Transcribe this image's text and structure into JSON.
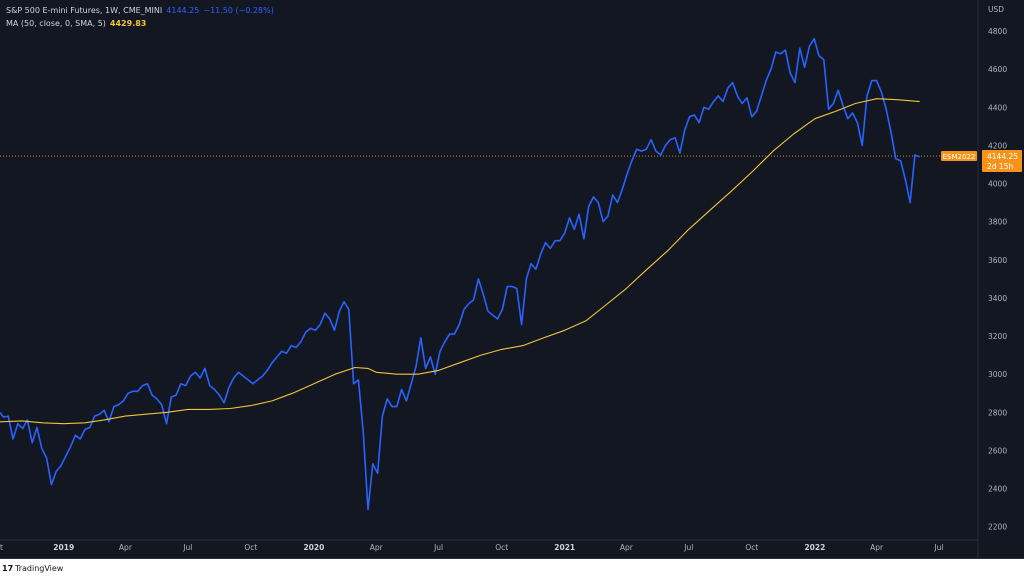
{
  "legend": {
    "symbol": "S&P 500 E-mini Futures, 1W, CME_MINI",
    "price": "4144.25",
    "change": "−11.50 (−0.28%)",
    "ma_label": "MA (50, close, 0, SMA, 5)",
    "ma_value": "4429.83"
  },
  "footer": {
    "brand": "TradingView",
    "logo_text": "17"
  },
  "chart_data": {
    "type": "line",
    "currency": "USD",
    "y_ticks": [
      2200,
      2400,
      2600,
      2800,
      3000,
      3200,
      3400,
      3600,
      3800,
      4000,
      4200,
      4400,
      4600,
      4800
    ],
    "ylim": [
      2130,
      4900
    ],
    "x_ticks": [
      {
        "label": "2019",
        "x": "2019-01-01"
      },
      {
        "label": "Apr",
        "x": "2019-04-01"
      },
      {
        "label": "Jul",
        "x": "2019-07-01"
      },
      {
        "label": "Oct",
        "x": "2019-10-01"
      },
      {
        "label": "2020",
        "x": "2020-01-01"
      },
      {
        "label": "Apr",
        "x": "2020-04-01"
      },
      {
        "label": "Jul",
        "x": "2020-07-01"
      },
      {
        "label": "Oct",
        "x": "2020-10-01"
      },
      {
        "label": "2021",
        "x": "2021-01-01"
      },
      {
        "label": "Apr",
        "x": "2021-04-01"
      },
      {
        "label": "Jul",
        "x": "2021-07-01"
      },
      {
        "label": "Oct",
        "x": "2021-10-01"
      },
      {
        "label": "2022",
        "x": "2022-01-01"
      },
      {
        "label": "Apr",
        "x": "2022-04-01"
      },
      {
        "label": "Jul",
        "x": "2022-07-01"
      }
    ],
    "first_x_label": "t",
    "xlim": [
      "2018-09-30",
      "2022-08-27"
    ],
    "current_price": 4144.25,
    "current_price_label": "4144.25",
    "countdown_label": "2d 15h",
    "contract_label": "ESM2022",
    "series": [
      {
        "color": "#2962ff",
        "points": [
          [
            "2018-09-30",
            2800
          ],
          [
            "2018-10-05",
            2775
          ],
          [
            "2018-10-12",
            2780
          ],
          [
            "2018-10-19",
            2660
          ],
          [
            "2018-10-26",
            2740
          ],
          [
            "2018-11-02",
            2715
          ],
          [
            "2018-11-09",
            2760
          ],
          [
            "2018-11-16",
            2640
          ],
          [
            "2018-11-23",
            2720
          ],
          [
            "2018-11-30",
            2610
          ],
          [
            "2018-12-07",
            2560
          ],
          [
            "2018-12-14",
            2420
          ],
          [
            "2018-12-21",
            2490
          ],
          [
            "2018-12-28",
            2520
          ],
          [
            "2019-01-04",
            2570
          ],
          [
            "2019-01-11",
            2620
          ],
          [
            "2019-01-18",
            2680
          ],
          [
            "2019-01-25",
            2660
          ],
          [
            "2019-02-01",
            2710
          ],
          [
            "2019-02-08",
            2720
          ],
          [
            "2019-02-15",
            2780
          ],
          [
            "2019-02-22",
            2790
          ],
          [
            "2019-03-01",
            2810
          ],
          [
            "2019-03-08",
            2750
          ],
          [
            "2019-03-15",
            2830
          ],
          [
            "2019-03-22",
            2840
          ],
          [
            "2019-03-29",
            2860
          ],
          [
            "2019-04-05",
            2900
          ],
          [
            "2019-04-12",
            2910
          ],
          [
            "2019-04-19",
            2910
          ],
          [
            "2019-04-26",
            2940
          ],
          [
            "2019-05-03",
            2950
          ],
          [
            "2019-05-10",
            2890
          ],
          [
            "2019-05-17",
            2870
          ],
          [
            "2019-05-24",
            2840
          ],
          [
            "2019-05-31",
            2740
          ],
          [
            "2019-06-07",
            2880
          ],
          [
            "2019-06-14",
            2890
          ],
          [
            "2019-06-21",
            2950
          ],
          [
            "2019-06-28",
            2940
          ],
          [
            "2019-07-05",
            2990
          ],
          [
            "2019-07-12",
            3010
          ],
          [
            "2019-07-19",
            2980
          ],
          [
            "2019-07-26",
            3030
          ],
          [
            "2019-08-02",
            2940
          ],
          [
            "2019-08-09",
            2920
          ],
          [
            "2019-08-16",
            2890
          ],
          [
            "2019-08-23",
            2850
          ],
          [
            "2019-08-30",
            2930
          ],
          [
            "2019-09-06",
            2980
          ],
          [
            "2019-09-13",
            3010
          ],
          [
            "2019-09-20",
            2990
          ],
          [
            "2019-09-27",
            2970
          ],
          [
            "2019-10-04",
            2950
          ],
          [
            "2019-10-11",
            2970
          ],
          [
            "2019-10-18",
            2990
          ],
          [
            "2019-10-25",
            3020
          ],
          [
            "2019-11-01",
            3060
          ],
          [
            "2019-11-08",
            3090
          ],
          [
            "2019-11-15",
            3120
          ],
          [
            "2019-11-22",
            3110
          ],
          [
            "2019-11-29",
            3150
          ],
          [
            "2019-12-06",
            3140
          ],
          [
            "2019-12-13",
            3170
          ],
          [
            "2019-12-20",
            3220
          ],
          [
            "2019-12-27",
            3240
          ],
          [
            "2020-01-03",
            3230
          ],
          [
            "2020-01-10",
            3260
          ],
          [
            "2020-01-17",
            3320
          ],
          [
            "2020-01-24",
            3290
          ],
          [
            "2020-01-31",
            3230
          ],
          [
            "2020-02-07",
            3330
          ],
          [
            "2020-02-14",
            3380
          ],
          [
            "2020-02-21",
            3340
          ],
          [
            "2020-02-28",
            2950
          ],
          [
            "2020-03-06",
            2970
          ],
          [
            "2020-03-13",
            2700
          ],
          [
            "2020-03-20",
            2290
          ],
          [
            "2020-03-27",
            2530
          ],
          [
            "2020-04-03",
            2480
          ],
          [
            "2020-04-10",
            2780
          ],
          [
            "2020-04-17",
            2870
          ],
          [
            "2020-04-24",
            2830
          ],
          [
            "2020-05-01",
            2830
          ],
          [
            "2020-05-08",
            2920
          ],
          [
            "2020-05-15",
            2860
          ],
          [
            "2020-05-22",
            2950
          ],
          [
            "2020-05-29",
            3040
          ],
          [
            "2020-06-05",
            3190
          ],
          [
            "2020-06-12",
            3030
          ],
          [
            "2020-06-19",
            3090
          ],
          [
            "2020-06-26",
            3000
          ],
          [
            "2020-07-03",
            3120
          ],
          [
            "2020-07-10",
            3170
          ],
          [
            "2020-07-17",
            3210
          ],
          [
            "2020-07-24",
            3210
          ],
          [
            "2020-07-31",
            3260
          ],
          [
            "2020-08-07",
            3340
          ],
          [
            "2020-08-14",
            3370
          ],
          [
            "2020-08-21",
            3390
          ],
          [
            "2020-08-28",
            3500
          ],
          [
            "2020-09-04",
            3420
          ],
          [
            "2020-09-11",
            3330
          ],
          [
            "2020-09-18",
            3310
          ],
          [
            "2020-09-25",
            3290
          ],
          [
            "2020-10-02",
            3340
          ],
          [
            "2020-10-09",
            3460
          ],
          [
            "2020-10-16",
            3460
          ],
          [
            "2020-10-23",
            3450
          ],
          [
            "2020-10-30",
            3260
          ],
          [
            "2020-11-06",
            3500
          ],
          [
            "2020-11-13",
            3580
          ],
          [
            "2020-11-20",
            3550
          ],
          [
            "2020-11-27",
            3630
          ],
          [
            "2020-12-04",
            3690
          ],
          [
            "2020-12-11",
            3660
          ],
          [
            "2020-12-18",
            3700
          ],
          [
            "2020-12-25",
            3700
          ],
          [
            "2021-01-01",
            3740
          ],
          [
            "2021-01-08",
            3820
          ],
          [
            "2021-01-15",
            3760
          ],
          [
            "2021-01-22",
            3840
          ],
          [
            "2021-01-29",
            3710
          ],
          [
            "2021-02-05",
            3880
          ],
          [
            "2021-02-12",
            3930
          ],
          [
            "2021-02-19",
            3900
          ],
          [
            "2021-02-26",
            3800
          ],
          [
            "2021-03-05",
            3830
          ],
          [
            "2021-03-12",
            3940
          ],
          [
            "2021-03-19",
            3900
          ],
          [
            "2021-03-26",
            3970
          ],
          [
            "2021-04-02",
            4050
          ],
          [
            "2021-04-09",
            4120
          ],
          [
            "2021-04-16",
            4180
          ],
          [
            "2021-04-23",
            4170
          ],
          [
            "2021-04-30",
            4180
          ],
          [
            "2021-05-07",
            4230
          ],
          [
            "2021-05-14",
            4170
          ],
          [
            "2021-05-21",
            4150
          ],
          [
            "2021-05-28",
            4200
          ],
          [
            "2021-06-04",
            4230
          ],
          [
            "2021-06-11",
            4240
          ],
          [
            "2021-06-18",
            4160
          ],
          [
            "2021-06-25",
            4280
          ],
          [
            "2021-07-02",
            4350
          ],
          [
            "2021-07-09",
            4360
          ],
          [
            "2021-07-16",
            4320
          ],
          [
            "2021-07-23",
            4400
          ],
          [
            "2021-07-30",
            4390
          ],
          [
            "2021-08-06",
            4430
          ],
          [
            "2021-08-13",
            4460
          ],
          [
            "2021-08-20",
            4430
          ],
          [
            "2021-08-27",
            4500
          ],
          [
            "2021-09-03",
            4530
          ],
          [
            "2021-09-10",
            4460
          ],
          [
            "2021-09-17",
            4420
          ],
          [
            "2021-09-24",
            4450
          ],
          [
            "2021-10-01",
            4350
          ],
          [
            "2021-10-08",
            4380
          ],
          [
            "2021-10-15",
            4460
          ],
          [
            "2021-10-22",
            4540
          ],
          [
            "2021-10-29",
            4600
          ],
          [
            "2021-11-05",
            4690
          ],
          [
            "2021-11-12",
            4680
          ],
          [
            "2021-11-19",
            4700
          ],
          [
            "2021-11-26",
            4580
          ],
          [
            "2021-12-03",
            4530
          ],
          [
            "2021-12-10",
            4710
          ],
          [
            "2021-12-17",
            4610
          ],
          [
            "2021-12-24",
            4720
          ],
          [
            "2021-12-31",
            4760
          ],
          [
            "2022-01-07",
            4670
          ],
          [
            "2022-01-14",
            4650
          ],
          [
            "2022-01-21",
            4390
          ],
          [
            "2022-01-28",
            4420
          ],
          [
            "2022-02-04",
            4490
          ],
          [
            "2022-02-11",
            4410
          ],
          [
            "2022-02-18",
            4340
          ],
          [
            "2022-02-25",
            4370
          ],
          [
            "2022-03-04",
            4320
          ],
          [
            "2022-03-11",
            4200
          ],
          [
            "2022-03-18",
            4460
          ],
          [
            "2022-03-25",
            4540
          ],
          [
            "2022-04-01",
            4540
          ],
          [
            "2022-04-08",
            4480
          ],
          [
            "2022-04-15",
            4390
          ],
          [
            "2022-04-22",
            4270
          ],
          [
            "2022-04-29",
            4130
          ],
          [
            "2022-05-06",
            4120
          ],
          [
            "2022-05-13",
            4020
          ],
          [
            "2022-05-20",
            3900
          ],
          [
            "2022-05-27",
            4150
          ],
          [
            "2022-06-03",
            4140
          ]
        ]
      },
      {
        "name": "MA (50, close, 0, SMA, 5)",
        "color": "#f0c43c",
        "points": [
          [
            "2018-09-30",
            2750
          ],
          [
            "2018-11-01",
            2755
          ],
          [
            "2018-12-01",
            2745
          ],
          [
            "2019-01-01",
            2740
          ],
          [
            "2019-02-01",
            2745
          ],
          [
            "2019-03-01",
            2760
          ],
          [
            "2019-04-01",
            2780
          ],
          [
            "2019-05-01",
            2790
          ],
          [
            "2019-06-01",
            2800
          ],
          [
            "2019-07-01",
            2815
          ],
          [
            "2019-08-01",
            2815
          ],
          [
            "2019-09-01",
            2820
          ],
          [
            "2019-10-01",
            2835
          ],
          [
            "2019-11-01",
            2860
          ],
          [
            "2019-12-01",
            2900
          ],
          [
            "2020-01-01",
            2950
          ],
          [
            "2020-02-01",
            3000
          ],
          [
            "2020-03-01",
            3035
          ],
          [
            "2020-03-20",
            3030
          ],
          [
            "2020-04-01",
            3010
          ],
          [
            "2020-05-01",
            3000
          ],
          [
            "2020-06-01",
            3000
          ],
          [
            "2020-07-01",
            3020
          ],
          [
            "2020-08-01",
            3060
          ],
          [
            "2020-09-01",
            3100
          ],
          [
            "2020-10-01",
            3130
          ],
          [
            "2020-11-01",
            3150
          ],
          [
            "2020-12-01",
            3190
          ],
          [
            "2021-01-01",
            3230
          ],
          [
            "2021-02-01",
            3280
          ],
          [
            "2021-03-01",
            3360
          ],
          [
            "2021-04-01",
            3450
          ],
          [
            "2021-05-01",
            3550
          ],
          [
            "2021-06-01",
            3650
          ],
          [
            "2021-07-01",
            3760
          ],
          [
            "2021-08-01",
            3860
          ],
          [
            "2021-09-01",
            3960
          ],
          [
            "2021-10-01",
            4060
          ],
          [
            "2021-11-01",
            4170
          ],
          [
            "2021-12-01",
            4260
          ],
          [
            "2022-01-01",
            4340
          ],
          [
            "2022-02-01",
            4380
          ],
          [
            "2022-03-01",
            4420
          ],
          [
            "2022-04-01",
            4445
          ],
          [
            "2022-05-01",
            4440
          ],
          [
            "2022-06-03",
            4430
          ]
        ]
      }
    ]
  }
}
